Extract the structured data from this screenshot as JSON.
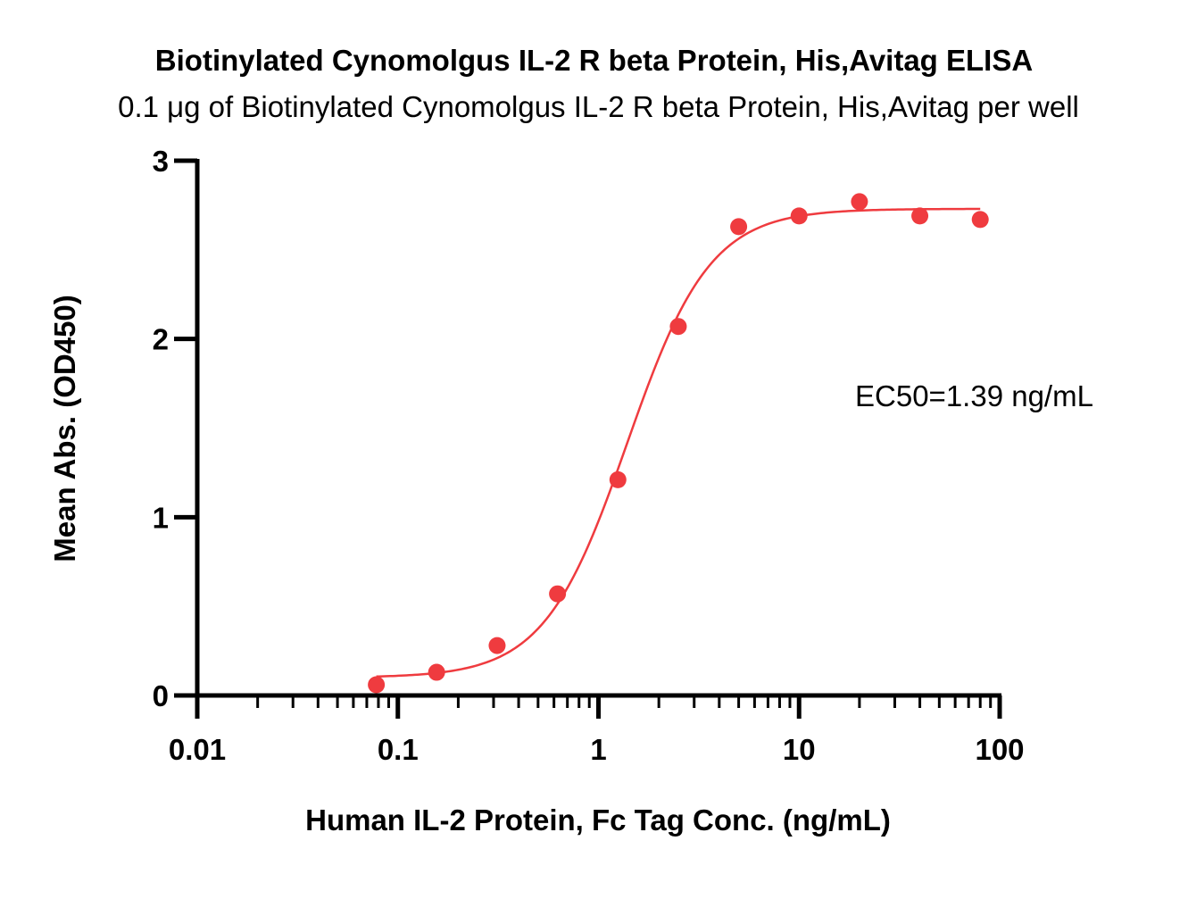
{
  "chart_data": {
    "type": "scatter",
    "title": "Biotinylated Cynomolgus IL-2 R beta Protein, His,Avitag ELISA",
    "subtitle": "0.1 μg of Biotinylated Cynomolgus IL-2 R beta Protein, His,Avitag per well",
    "xlabel": "Human IL-2 Protein, Fc Tag Conc. (ng/mL)",
    "ylabel": "Mean Abs. (OD450)",
    "x_scale": "log",
    "xlim": [
      0.01,
      100
    ],
    "ylim": [
      0,
      3
    ],
    "x_ticks": [
      "0.01",
      "0.1",
      "1",
      "10",
      "100"
    ],
    "y_ticks": [
      "0",
      "1",
      "2",
      "3"
    ],
    "grid": false,
    "color": "#ef3b3f",
    "annotation": "EC50=1.39 ng/mL",
    "series": [
      {
        "x": [
          0.0781,
          0.156,
          0.3125,
          0.625,
          1.25,
          2.5,
          5,
          10,
          20,
          40,
          80
        ],
        "y": [
          0.06,
          0.13,
          0.28,
          0.57,
          1.21,
          2.07,
          2.63,
          2.69,
          2.77,
          2.69,
          2.67
        ]
      }
    ],
    "fit": {
      "model": "4PL",
      "bottom": 0.1,
      "top": 2.73,
      "ec50": 1.39,
      "hill": 2.1,
      "x_range": [
        0.0781,
        80
      ]
    }
  }
}
